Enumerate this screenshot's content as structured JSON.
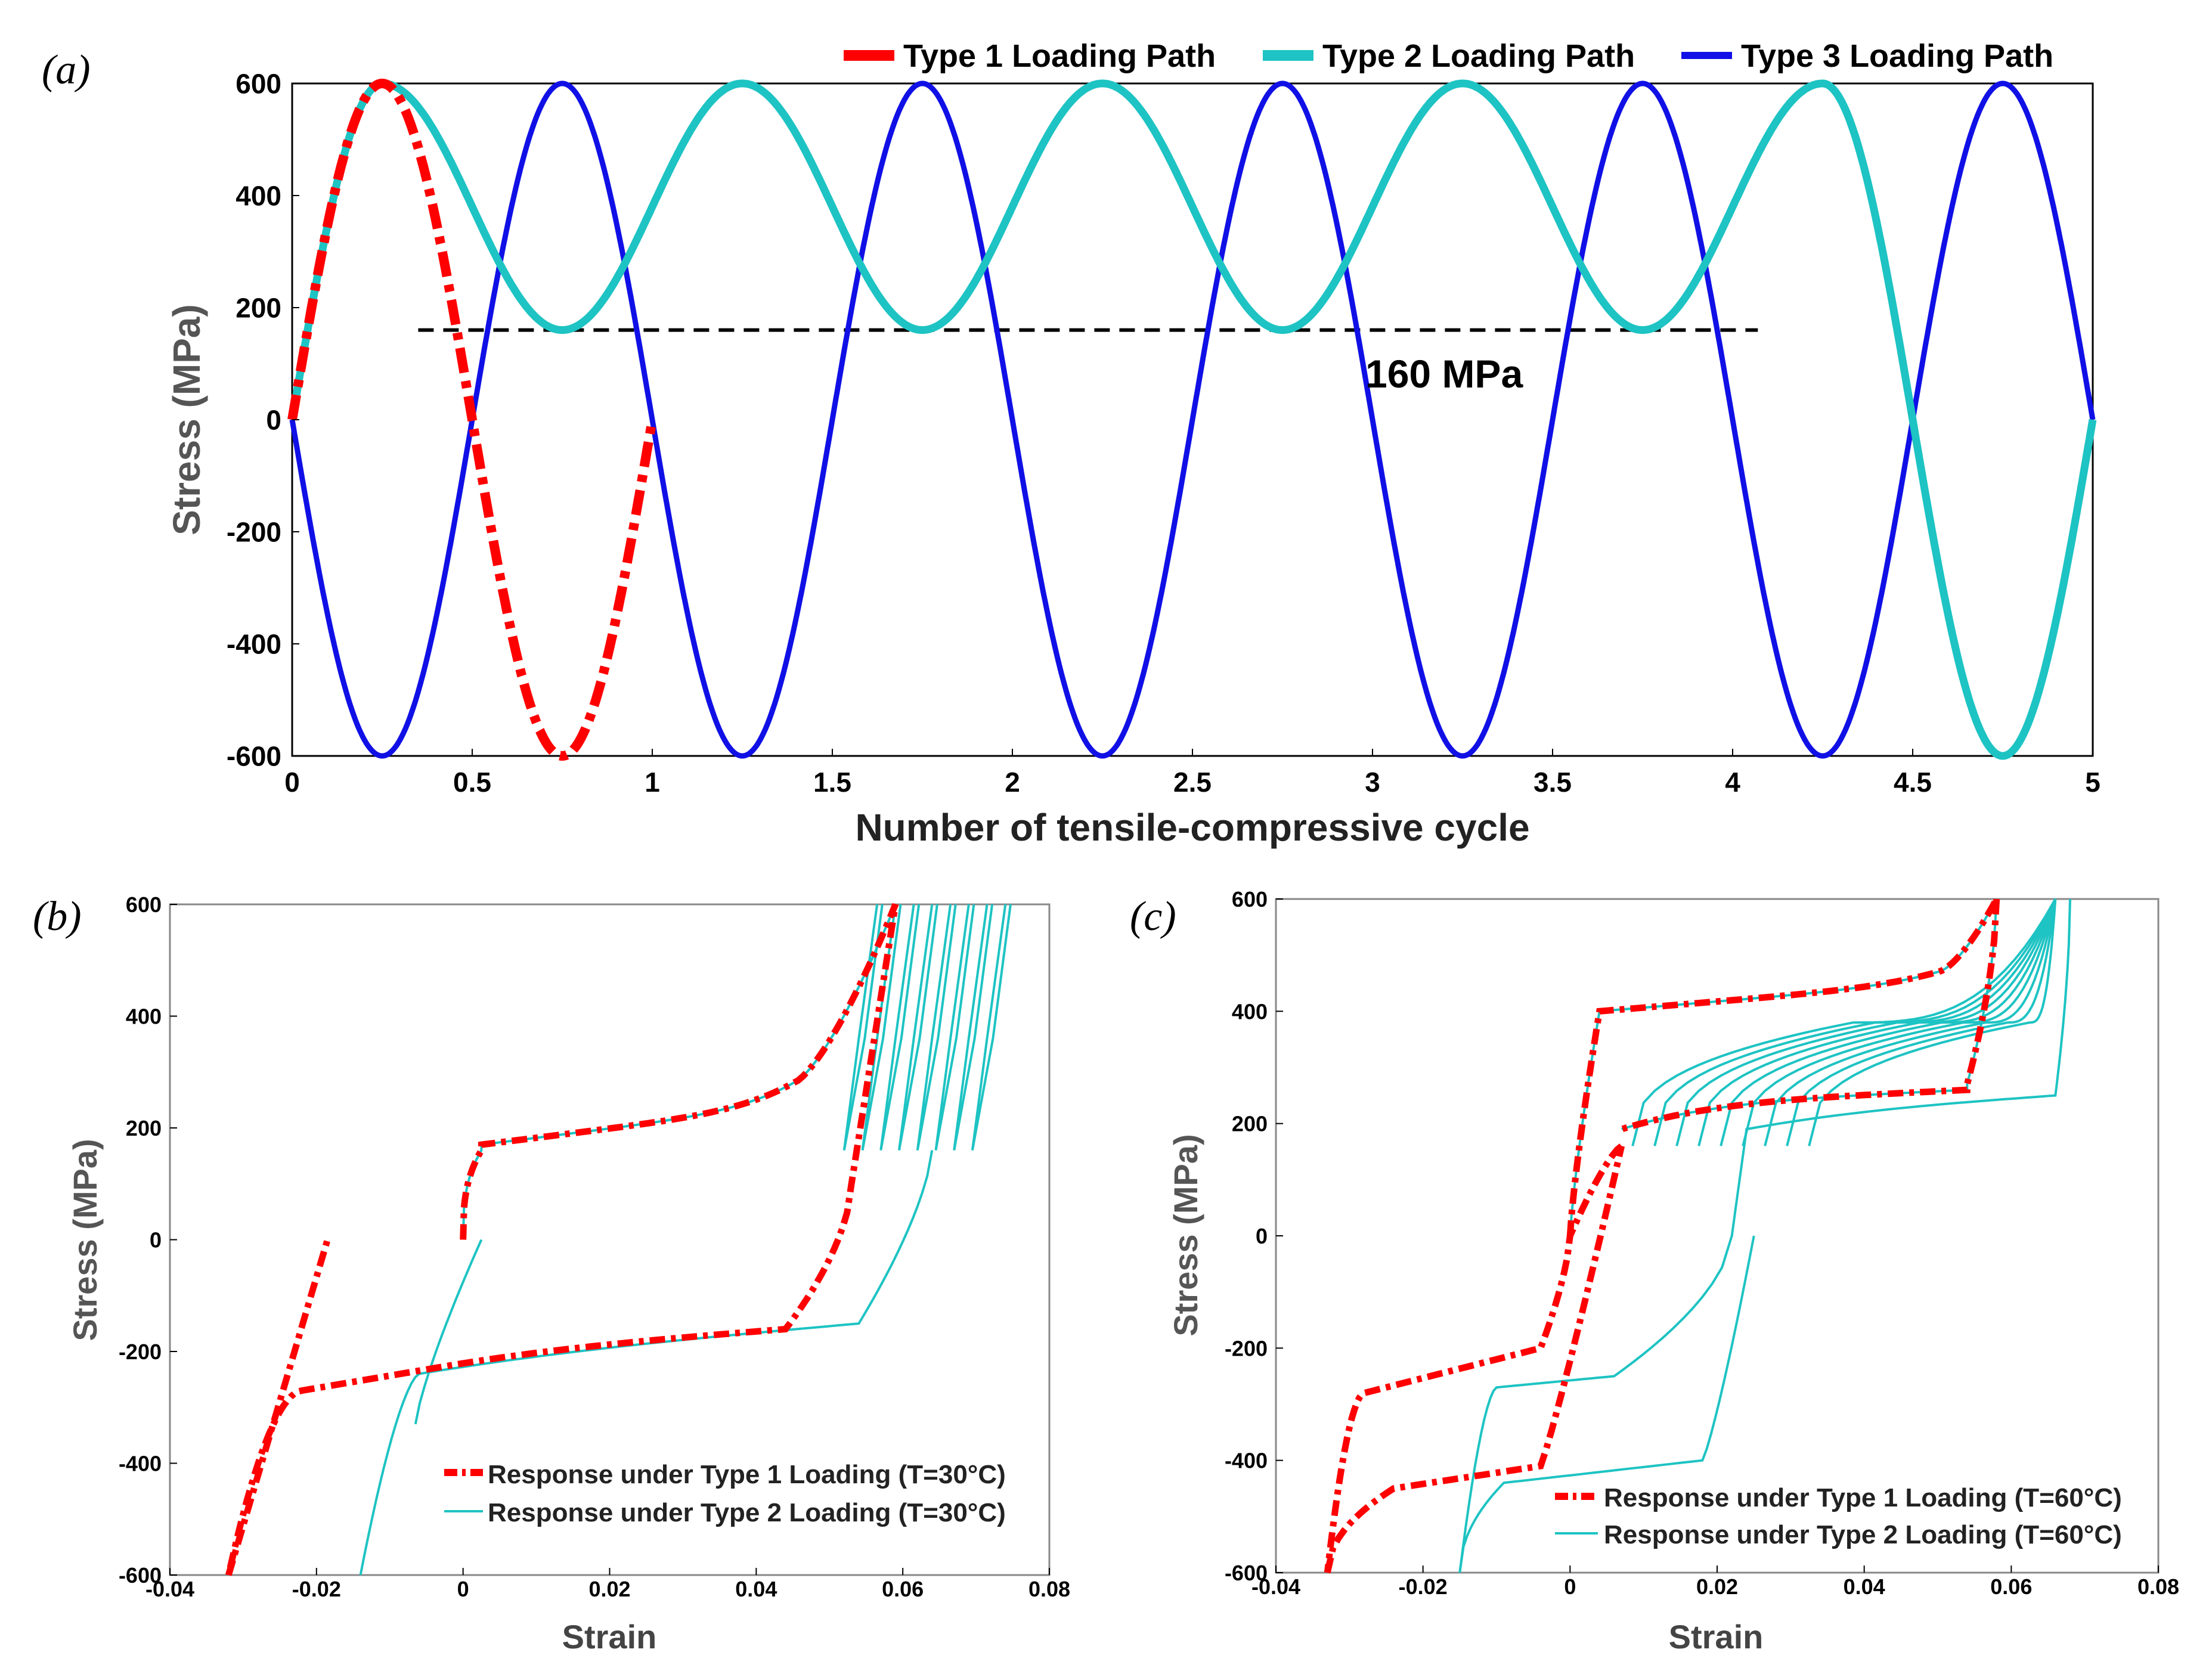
{
  "colors": {
    "type1": "#ff0000",
    "type2": "#1ec3c3",
    "type3": "#1010e6",
    "axis": "#000000",
    "label_gray": "#555555"
  },
  "chart_data": [
    {
      "panel": "(a)",
      "type": "line",
      "xlabel": "Number of tensile-compressive cycle",
      "ylabel": "Stress (MPa)",
      "xlim": [
        0,
        5
      ],
      "ylim": [
        -600,
        600
      ],
      "x_ticks": [
        0,
        0.5,
        1,
        1.5,
        2,
        2.5,
        3,
        3.5,
        4,
        4.5,
        5
      ],
      "x_tick_labels": [
        "0",
        "0.5",
        "1",
        "1.5",
        "2",
        "2.5",
        "3",
        "3.5",
        "4",
        "4.5",
        "5"
      ],
      "y_ticks": [
        -600,
        -400,
        -200,
        0,
        200,
        400,
        600
      ],
      "y_tick_labels": [
        "-600",
        "-400",
        "-200",
        "0",
        "200",
        "400",
        "600"
      ],
      "grid": false,
      "legend_position": "top",
      "series": [
        {
          "name": "Type 1 Loading Path",
          "style": "dash-dot",
          "x": [
            0,
            0.05,
            0.1,
            0.15,
            0.2,
            0.25,
            0.3,
            0.35,
            0.4,
            0.45,
            0.5,
            0.55,
            0.6,
            0.65,
            0.7,
            0.75,
            0.8,
            0.85,
            0.9,
            0.95,
            1.0
          ],
          "y": [
            0,
            185,
            353,
            485,
            571,
            600,
            571,
            485,
            353,
            185,
            0,
            -185,
            -353,
            -485,
            -571,
            -600,
            -571,
            -485,
            -353,
            -185,
            0
          ]
        },
        {
          "name": "Type 2 Loading Path",
          "style": "solid",
          "x": [
            0,
            0.05,
            0.1,
            0.15,
            0.2,
            0.25,
            0.3,
            0.35,
            0.4,
            0.45,
            0.5,
            0.55,
            0.6,
            0.65,
            0.7,
            0.75,
            0.8,
            0.85,
            0.9,
            0.95,
            1.0,
            1.05,
            1.1,
            1.15,
            1.2,
            1.25,
            1.3,
            1.35,
            1.4,
            1.45,
            1.5,
            1.55,
            1.6,
            1.65,
            1.7,
            1.75,
            1.8,
            1.85,
            1.9,
            1.95,
            2.0,
            2.05,
            2.1,
            2.15,
            2.2,
            2.25,
            2.3,
            2.35,
            2.4,
            2.45,
            2.5,
            2.55,
            2.6,
            2.65,
            2.7,
            2.75,
            2.8,
            2.85,
            2.9,
            2.95,
            3.0,
            3.05,
            3.1,
            3.15,
            3.2,
            3.25,
            3.3,
            3.35,
            3.4,
            3.45,
            3.5,
            3.55,
            3.6,
            3.65,
            3.7,
            3.75,
            3.8,
            3.85,
            3.9,
            3.95,
            4.0,
            4.05,
            4.1,
            4.15,
            4.2,
            4.25,
            4.3,
            4.35,
            4.4,
            4.45,
            4.5,
            4.55,
            4.6,
            4.65,
            4.7,
            4.75,
            4.8,
            4.85,
            4.9,
            4.95,
            5.0
          ],
          "y": [
            0,
            185,
            353,
            485,
            571,
            600,
            553,
            431,
            283,
            176,
            160,
            210,
            328,
            472,
            578,
            600,
            553,
            431,
            283,
            176,
            160,
            210,
            328,
            472,
            578,
            600,
            553,
            431,
            283,
            176,
            160,
            210,
            328,
            472,
            578,
            600,
            553,
            431,
            283,
            176,
            160,
            210,
            328,
            472,
            578,
            600,
            553,
            431,
            283,
            176,
            160,
            210,
            328,
            472,
            578,
            600,
            553,
            431,
            283,
            176,
            160,
            210,
            328,
            472,
            578,
            600,
            553,
            431,
            283,
            176,
            160,
            210,
            328,
            472,
            578,
            600,
            553,
            431,
            283,
            176,
            160,
            210,
            328,
            472,
            578,
            600,
            571,
            485,
            353,
            185,
            0,
            -185,
            -353,
            -485,
            -571,
            -600,
            -571,
            -485,
            -353,
            -185,
            0
          ]
        },
        {
          "name": "Type 3 Loading Path",
          "style": "solid",
          "function": "y = -600 sin(2πx) with period 1",
          "x": [
            0,
            0.25,
            0.5,
            0.75,
            1.0,
            1.25,
            1.5,
            1.75,
            2.0,
            2.25,
            2.5,
            2.75,
            3.0,
            3.25,
            3.5,
            3.75,
            4.0,
            4.25,
            4.5,
            4.75,
            5.0
          ],
          "y": [
            0,
            -600,
            0,
            600,
            0,
            -600,
            0,
            600,
            0,
            -600,
            0,
            600,
            0,
            -600,
            0,
            600,
            0,
            -600,
            0,
            600,
            0
          ]
        }
      ],
      "annotations": [
        {
          "text": "160 MPa",
          "x": 3.0,
          "y": 90
        }
      ],
      "reference_line": {
        "y": 160,
        "x_range": [
          0.35,
          4.07
        ],
        "style": "dashed"
      }
    },
    {
      "panel": "(b)",
      "type": "line",
      "xlabel": "Strain",
      "ylabel": "Stress (MPa)",
      "xlim": [
        -0.04,
        0.08
      ],
      "ylim": [
        -600,
        600
      ],
      "x_ticks": [
        -0.04,
        -0.02,
        0,
        0.02,
        0.04,
        0.06,
        0.08
      ],
      "x_tick_labels": [
        "-0.04",
        "-0.02",
        "0",
        "0.02",
        "0.04",
        "0.06",
        "0.08"
      ],
      "y_ticks": [
        -600,
        -400,
        -200,
        0,
        200,
        400,
        600
      ],
      "y_tick_labels": [
        "-600",
        "-400",
        "-200",
        "0",
        "200",
        "400",
        "600"
      ],
      "legend_position": "bottom-right",
      "series": [
        {
          "name": "Response under Type 1 Loading (T=30°C)",
          "style": "dash-dot",
          "x": [
            0,
            0.0015,
            0.003,
            0.006,
            0.015,
            0.03,
            0.045,
            0.051,
            0.056,
            0.059,
            0.057,
            0.054,
            0.05,
            0.046,
            0.04,
            0.02,
            0.0,
            -0.012,
            -0.022,
            -0.026,
            -0.029,
            -0.032,
            -0.026,
            -0.022,
            -0.0185
          ],
          "y": [
            0,
            145,
            175,
            190,
            203,
            215,
            240,
            280,
            380,
            600,
            430,
            260,
            100,
            -80,
            -175,
            -210,
            -225,
            -240,
            -260,
            -310,
            -440,
            -600,
            -300,
            -120,
            0
          ]
        },
        {
          "name": "Response under Type 2 Loading (T=30°C)",
          "style": "solid",
          "x": [
            0,
            0.0015,
            0.003,
            0.006,
            0.015,
            0.03,
            0.045,
            0.051,
            0.056,
            0.059,
            0.057,
            0.0545,
            0.0525,
            0.0555,
            0.057,
            0.0545,
            0.058,
            0.0595,
            0.057,
            0.0605,
            0.062,
            0.0595,
            0.063,
            0.064,
            0.0615,
            0.0645,
            0.066,
            0.0635,
            0.067,
            0.068,
            0.0655,
            0.0685,
            0.07,
            0.0675,
            0.0705,
            0.072,
            0.0695,
            0.0725,
            0.0735,
            0.064,
            0.06,
            0.05,
            0.03,
            0.0,
            -0.007,
            -0.009,
            -0.014,
            -0.009,
            -0.004,
            0.001,
            0.0025
          ],
          "y": [
            0,
            145,
            175,
            190,
            203,
            215,
            240,
            280,
            380,
            600,
            420,
            260,
            160,
            400,
            600,
            160,
            400,
            600,
            160,
            400,
            600,
            160,
            400,
            600,
            160,
            400,
            600,
            160,
            400,
            600,
            160,
            400,
            600,
            160,
            400,
            600,
            160,
            400,
            600,
            160,
            -100,
            -165,
            -200,
            -240,
            -290,
            -340,
            -600,
            -340,
            -200,
            -60,
            0
          ]
        }
      ]
    },
    {
      "panel": "(c)",
      "type": "line",
      "xlabel": "Strain",
      "ylabel": "Stress (MPa)",
      "xlim": [
        -0.04,
        0.08
      ],
      "ylim": [
        -600,
        600
      ],
      "x_ticks": [
        -0.04,
        -0.02,
        0,
        0.02,
        0.04,
        0.06,
        0.08
      ],
      "x_tick_labels": [
        "-0.04",
        "-0.02",
        "0",
        "0.02",
        "0.04",
        "0.06",
        "0.08"
      ],
      "y_ticks": [
        -600,
        -400,
        -200,
        0,
        200,
        400,
        600
      ],
      "y_tick_labels": [
        "-600",
        "-400",
        "-200",
        "0",
        "200",
        "400",
        "600"
      ],
      "legend_position": "bottom-right",
      "series": [
        {
          "name": "Response under Type 1 Loading (T=60°C)",
          "style": "dash-dot",
          "x": [
            0,
            0.002,
            0.004,
            0.01,
            0.03,
            0.05,
            0.055,
            0.058,
            0.056,
            0.054,
            0.052,
            0.04,
            0.02,
            0.008,
            0.004,
            0.002,
            0.0,
            -0.001,
            -0.004,
            -0.012,
            -0.022,
            -0.028,
            -0.031,
            -0.033,
            -0.03,
            -0.024,
            -0.016,
            -0.008,
            -0.004,
            -0.002,
            -0.001,
            0.0,
            0.001,
            0.002,
            0.004,
            0.006,
            0.007
          ],
          "y": [
            0,
            200,
            380,
            425,
            445,
            460,
            490,
            600,
            440,
            320,
            260,
            245,
            230,
            210,
            180,
            100,
            0,
            -100,
            -190,
            -240,
            -260,
            -290,
            -380,
            -600,
            -480,
            -440,
            -420,
            -410,
            -380,
            -320,
            -200,
            -80,
            60,
            110,
            140,
            160,
            160
          ]
        },
        {
          "name": "Response under Type 2 Loading (T=60°C)",
          "style": "solid",
          "x": [
            0,
            0.002,
            0.004,
            0.01,
            0.03,
            0.05,
            0.055,
            0.058,
            0.056,
            0.054,
            0.052,
            0.04,
            0.02,
            0.008,
            0.012,
            0.016,
            0.02,
            0.04,
            0.06,
            0.065,
            0.068,
            0.066,
            0.06,
            0.04,
            0.022,
            0.024,
            0.02,
            0.01,
            -0.002,
            -0.01,
            -0.015,
            -0.008,
            0.0,
            0.015,
            0.022,
            0.024,
            0.025
          ],
          "y": [
            0,
            200,
            380,
            425,
            445,
            460,
            490,
            600,
            440,
            320,
            260,
            245,
            230,
            210,
            330,
            385,
            395,
            400,
            420,
            480,
            600,
            250,
            200,
            215,
            160,
            0,
            -200,
            -250,
            -265,
            -300,
            -600,
            -440,
            -425,
            -410,
            -380,
            -200,
            0
          ]
        }
      ]
    }
  ],
  "legend_a": {
    "type1": "Type 1 Loading Path",
    "type2": "Type 2 Loading Path",
    "type3": "Type 3 Loading Path"
  },
  "legend_b": {
    "type1": "Response under Type 1 Loading (T=30°C)",
    "type2": "Response under Type 2 Loading (T=30°C)"
  },
  "legend_c": {
    "type1": "Response under Type 1 Loading (T=60°C)",
    "type2": "Response under Type 2 Loading (T=60°C)"
  }
}
